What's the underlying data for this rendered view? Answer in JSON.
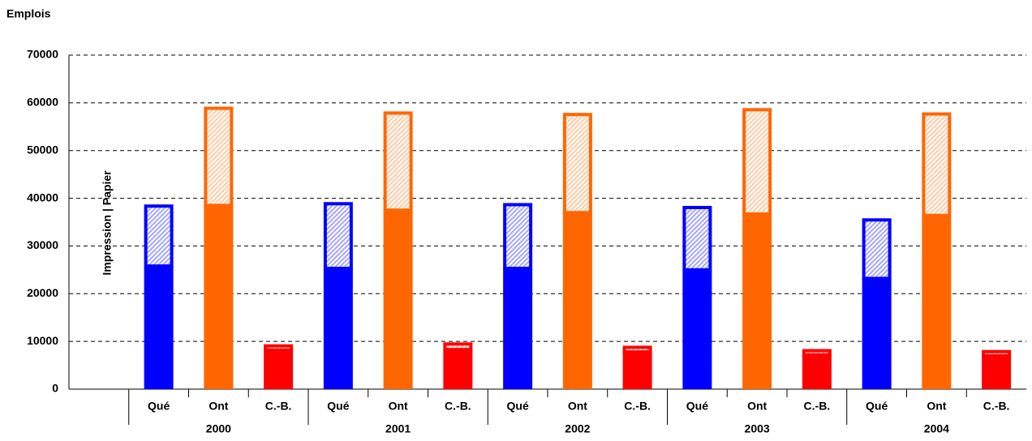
{
  "chart_data": {
    "type": "stacked-bar",
    "title": "Emplois",
    "annotation": "Impression  |  Papier",
    "categories": [
      null,
      "Qué",
      "Ont",
      "C.-B.",
      "Qué",
      "Ont",
      "C.-B.",
      "Qué",
      "Ont",
      "C.-B.",
      "Qué",
      "Ont",
      "C.-B.",
      "Qué",
      "Ont",
      "C.-B."
    ],
    "category_colors": [
      null,
      "#0000ff",
      "#ff6600",
      "#ff0000",
      "#0000ff",
      "#ff6600",
      "#ff0000",
      "#0000ff",
      "#ff6600",
      "#ff0000",
      "#0000ff",
      "#ff6600",
      "#ff0000",
      "#0000ff",
      "#ff6600",
      "#ff0000"
    ],
    "groups": [
      "2000",
      "2001",
      "2002",
      "2003",
      "2004"
    ],
    "series": [
      {
        "values": [
          null,
          25800,
          38500,
          8200,
          25300,
          37500,
          8300,
          25300,
          37000,
          7800,
          25000,
          36700,
          7200,
          23200,
          36400,
          7000
        ]
      },
      {
        "values": [
          null,
          12900,
          20700,
          1200,
          13900,
          20700,
          1500,
          13700,
          20900,
          1300,
          13400,
          22200,
          1200,
          12600,
          21600,
          1200
        ],
        "hatched": true
      }
    ],
    "ylim": [
      0,
      70000
    ],
    "yticks": [
      0,
      10000,
      20000,
      30000,
      40000,
      50000,
      60000,
      70000
    ],
    "grid": true
  }
}
